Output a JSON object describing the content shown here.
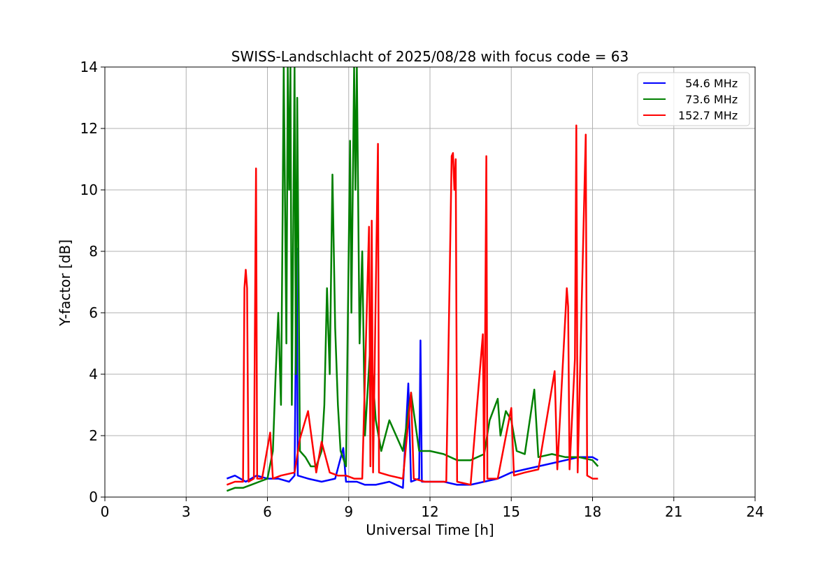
{
  "chart_data": {
    "type": "line",
    "title": "SWISS-Landschlacht of 2025/08/28 with focus code = 63",
    "xlabel": "Universal Time [h]",
    "ylabel": "Y-factor [dB]",
    "xlim": [
      0,
      24
    ],
    "ylim": [
      0,
      14
    ],
    "xticks": [
      0,
      3,
      6,
      9,
      12,
      15,
      18,
      21,
      24
    ],
    "yticks": [
      0,
      2,
      4,
      6,
      8,
      10,
      12,
      14
    ],
    "grid": true,
    "legend_position": "top-right",
    "series": [
      {
        "name": "  54.6 MHz",
        "color": "#0000ff",
        "points": [
          [
            4.5,
            0.6
          ],
          [
            4.8,
            0.7
          ],
          [
            5.2,
            0.5
          ],
          [
            5.6,
            0.7
          ],
          [
            6.0,
            0.6
          ],
          [
            6.4,
            0.6
          ],
          [
            6.8,
            0.5
          ],
          [
            7.0,
            0.7
          ],
          [
            7.08,
            8.1
          ],
          [
            7.12,
            0.7
          ],
          [
            7.5,
            0.6
          ],
          [
            8.0,
            0.5
          ],
          [
            8.5,
            0.6
          ],
          [
            8.8,
            1.6
          ],
          [
            8.9,
            0.5
          ],
          [
            9.3,
            0.5
          ],
          [
            9.6,
            0.4
          ],
          [
            10.0,
            0.4
          ],
          [
            10.5,
            0.5
          ],
          [
            11.0,
            0.3
          ],
          [
            11.2,
            3.7
          ],
          [
            11.3,
            0.5
          ],
          [
            11.6,
            0.6
          ],
          [
            11.65,
            5.1
          ],
          [
            11.7,
            0.5
          ],
          [
            12.0,
            0.5
          ],
          [
            12.5,
            0.5
          ],
          [
            13.0,
            0.4
          ],
          [
            13.5,
            0.4
          ],
          [
            14.0,
            0.5
          ],
          [
            14.5,
            0.6
          ],
          [
            15.0,
            0.8
          ],
          [
            15.5,
            0.9
          ],
          [
            16.0,
            1.0
          ],
          [
            16.5,
            1.1
          ],
          [
            17.0,
            1.2
          ],
          [
            17.5,
            1.3
          ],
          [
            18.0,
            1.3
          ],
          [
            18.2,
            1.2
          ]
        ]
      },
      {
        "name": "  73.6 MHz",
        "color": "#008000",
        "points": [
          [
            4.5,
            0.2
          ],
          [
            4.8,
            0.3
          ],
          [
            5.1,
            0.3
          ],
          [
            5.4,
            0.4
          ],
          [
            5.7,
            0.5
          ],
          [
            6.0,
            0.6
          ],
          [
            6.2,
            1.5
          ],
          [
            6.3,
            3.9
          ],
          [
            6.4,
            6.0
          ],
          [
            6.5,
            3.0
          ],
          [
            6.55,
            8.0
          ],
          [
            6.6,
            14.0
          ],
          [
            6.7,
            5.0
          ],
          [
            6.75,
            14.0
          ],
          [
            6.8,
            10.0
          ],
          [
            6.85,
            14.0
          ],
          [
            6.9,
            3.0
          ],
          [
            7.0,
            14.0
          ],
          [
            7.05,
            4.0
          ],
          [
            7.1,
            13.0
          ],
          [
            7.2,
            1.5
          ],
          [
            7.4,
            1.3
          ],
          [
            7.6,
            1.0
          ],
          [
            7.8,
            1.0
          ],
          [
            8.0,
            1.5
          ],
          [
            8.1,
            3.0
          ],
          [
            8.2,
            6.8
          ],
          [
            8.3,
            4.0
          ],
          [
            8.4,
            10.5
          ],
          [
            8.5,
            5.5
          ],
          [
            8.6,
            3.0
          ],
          [
            8.7,
            1.5
          ],
          [
            8.9,
            1.0
          ],
          [
            9.05,
            11.6
          ],
          [
            9.1,
            6.0
          ],
          [
            9.2,
            14.0
          ],
          [
            9.25,
            10.0
          ],
          [
            9.3,
            14.0
          ],
          [
            9.4,
            5.0
          ],
          [
            9.5,
            8.0
          ],
          [
            9.6,
            2.0
          ],
          [
            9.8,
            5.0
          ],
          [
            10.0,
            2.5
          ],
          [
            10.2,
            1.5
          ],
          [
            10.5,
            2.5
          ],
          [
            11.0,
            1.5
          ],
          [
            11.3,
            3.4
          ],
          [
            11.6,
            1.5
          ],
          [
            12.0,
            1.5
          ],
          [
            12.5,
            1.4
          ],
          [
            13.0,
            1.2
          ],
          [
            13.5,
            1.2
          ],
          [
            14.0,
            1.4
          ],
          [
            14.2,
            2.5
          ],
          [
            14.5,
            3.2
          ],
          [
            14.6,
            2.0
          ],
          [
            14.8,
            2.8
          ],
          [
            15.0,
            2.5
          ],
          [
            15.2,
            1.5
          ],
          [
            15.5,
            1.4
          ],
          [
            15.85,
            3.5
          ],
          [
            16.0,
            1.3
          ],
          [
            16.5,
            1.4
          ],
          [
            17.0,
            1.3
          ],
          [
            17.5,
            1.3
          ],
          [
            18.0,
            1.2
          ],
          [
            18.2,
            1.0
          ]
        ]
      },
      {
        "name": "152.7 MHz",
        "color": "#ff0000",
        "points": [
          [
            4.5,
            0.4
          ],
          [
            4.8,
            0.5
          ],
          [
            5.1,
            0.5
          ],
          [
            5.15,
            6.8
          ],
          [
            5.2,
            7.4
          ],
          [
            5.25,
            6.8
          ],
          [
            5.3,
            0.5
          ],
          [
            5.5,
            0.6
          ],
          [
            5.58,
            10.7
          ],
          [
            5.62,
            0.6
          ],
          [
            5.8,
            0.6
          ],
          [
            6.1,
            2.1
          ],
          [
            6.2,
            0.6
          ],
          [
            6.5,
            0.7
          ],
          [
            7.0,
            0.8
          ],
          [
            7.2,
            1.9
          ],
          [
            7.5,
            2.8
          ],
          [
            7.8,
            0.8
          ],
          [
            8.0,
            1.8
          ],
          [
            8.3,
            0.8
          ],
          [
            8.6,
            0.7
          ],
          [
            8.9,
            0.7
          ],
          [
            9.2,
            0.6
          ],
          [
            9.5,
            0.6
          ],
          [
            9.75,
            8.8
          ],
          [
            9.8,
            1.0
          ],
          [
            9.85,
            9.0
          ],
          [
            9.9,
            0.8
          ],
          [
            10.08,
            11.5
          ],
          [
            10.12,
            0.8
          ],
          [
            10.5,
            0.7
          ],
          [
            11.0,
            0.6
          ],
          [
            11.3,
            3.4
          ],
          [
            11.4,
            0.6
          ],
          [
            11.8,
            0.5
          ],
          [
            12.2,
            0.5
          ],
          [
            12.6,
            0.5
          ],
          [
            12.8,
            11.1
          ],
          [
            12.85,
            11.2
          ],
          [
            12.9,
            10.0
          ],
          [
            12.95,
            11.0
          ],
          [
            13.0,
            0.5
          ],
          [
            13.5,
            0.4
          ],
          [
            13.95,
            5.3
          ],
          [
            14.0,
            0.5
          ],
          [
            14.08,
            11.1
          ],
          [
            14.12,
            0.6
          ],
          [
            14.5,
            0.6
          ],
          [
            15.0,
            2.9
          ],
          [
            15.1,
            0.7
          ],
          [
            15.5,
            0.8
          ],
          [
            16.0,
            0.9
          ],
          [
            16.6,
            4.1
          ],
          [
            16.7,
            0.9
          ],
          [
            17.05,
            6.8
          ],
          [
            17.1,
            6.2
          ],
          [
            17.15,
            0.9
          ],
          [
            17.35,
            4.5
          ],
          [
            17.4,
            12.1
          ],
          [
            17.45,
            0.8
          ],
          [
            17.75,
            11.8
          ],
          [
            17.8,
            0.7
          ],
          [
            18.0,
            0.6
          ],
          [
            18.2,
            0.6
          ]
        ]
      }
    ]
  }
}
